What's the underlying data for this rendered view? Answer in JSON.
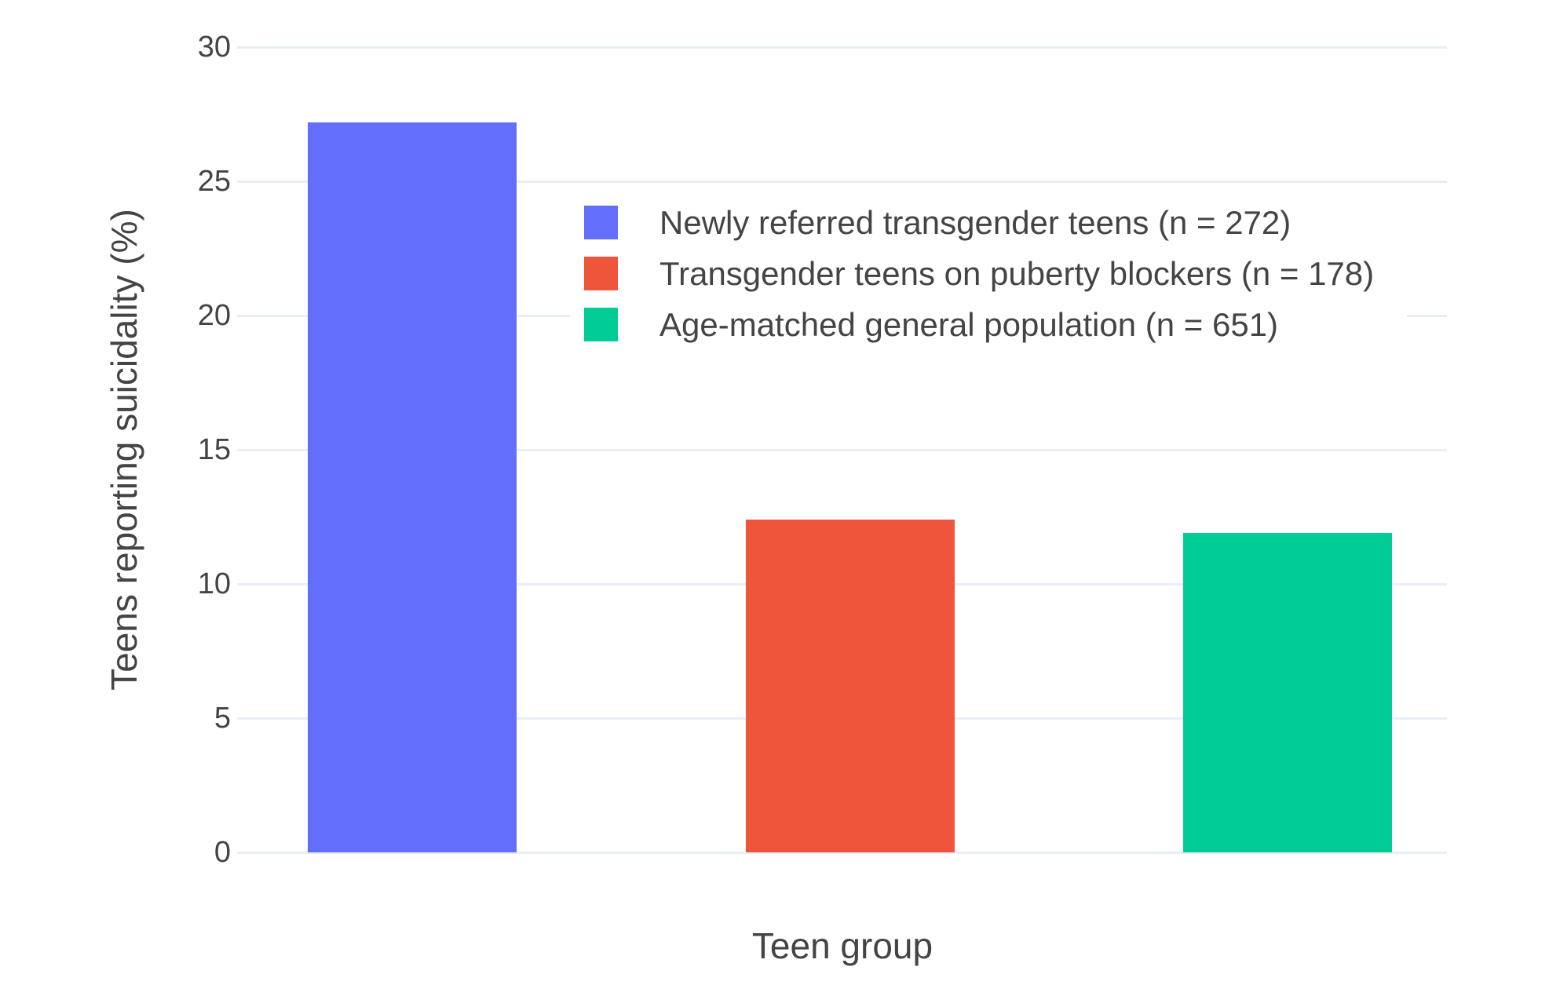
{
  "style": {
    "background": "#FFFFFF",
    "grid_color": "#E9EDF6",
    "zero_line_color": "#E9EDF6",
    "text_color": "#444444"
  },
  "chart_data": {
    "type": "bar",
    "categories": [
      "Newly referred transgender teens (n = 272)",
      "Transgender teens on puberty blockers (n = 178)",
      "Age-matched general population (n = 651)"
    ],
    "values": [
      27.2,
      12.4,
      11.9
    ],
    "colors": [
      "#636EFA",
      "#EF553B",
      "#00CC96"
    ],
    "title": "",
    "xlabel": "Teen group",
    "ylabel": "Teens reporting suicidality (%)",
    "ylim": [
      0,
      30
    ],
    "yticks": [
      0,
      5,
      10,
      15,
      20,
      25,
      30
    ],
    "grid": true,
    "legend_position": "inside-top-center",
    "legend": {
      "entries": [
        {
          "label": "Newly referred transgender teens (n = 272)",
          "color": "#636EFA"
        },
        {
          "label": "Transgender teens on puberty blockers (n = 178)",
          "color": "#EF553B"
        },
        {
          "label": "Age-matched general population (n = 651)",
          "color": "#00CC96"
        }
      ]
    }
  }
}
